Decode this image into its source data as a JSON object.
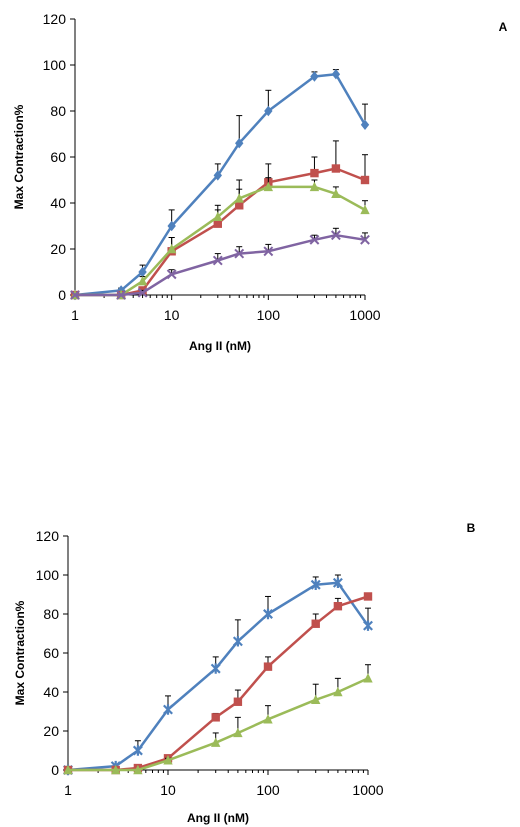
{
  "colors": {
    "blue": "#4F81BD",
    "red": "#C0504D",
    "green": "#9BBB59",
    "purple": "#8064A2",
    "axis": "#000000",
    "errorbar": "#000000"
  },
  "chart_data": [
    {
      "panel_label": "A",
      "type": "line",
      "xlabel": "Ang II (nM)",
      "ylabel": "Max Contraction%",
      "xscale": "log",
      "xlim": [
        1,
        1000
      ],
      "ylim": [
        0,
        120
      ],
      "xticks": [
        "1",
        "10",
        "100",
        "1000"
      ],
      "yticks": [
        "0",
        "20",
        "40",
        "60",
        "80",
        "100",
        "120"
      ],
      "grid": false,
      "legend": "none",
      "series": [
        {
          "color": "blue",
          "marker": "diamond",
          "x": [
            1,
            3,
            5,
            10,
            30,
            50,
            100,
            300,
            500,
            1000
          ],
          "y": [
            0,
            2,
            10,
            30,
            52,
            66,
            80,
            95,
            96,
            74
          ],
          "err": [
            0,
            1,
            3,
            7,
            5,
            12,
            9,
            2,
            2,
            9
          ]
        },
        {
          "color": "red",
          "marker": "square",
          "x": [
            1,
            3,
            5,
            10,
            30,
            50,
            100,
            300,
            500,
            1000
          ],
          "y": [
            0,
            0,
            2,
            19,
            31,
            39,
            49,
            53,
            55,
            50
          ],
          "err": [
            0,
            0,
            1,
            6,
            6,
            7,
            8,
            7,
            12,
            11
          ]
        },
        {
          "color": "green",
          "marker": "triangle",
          "x": [
            1,
            3,
            5,
            10,
            30,
            50,
            100,
            300,
            500,
            1000
          ],
          "y": [
            0,
            0,
            6,
            20,
            34,
            42,
            47,
            47,
            44,
            37
          ],
          "err": [
            0,
            0,
            2,
            5,
            5,
            8,
            4,
            3,
            3,
            4
          ]
        },
        {
          "color": "purple",
          "marker": "x",
          "x": [
            1,
            3,
            5,
            10,
            30,
            50,
            100,
            300,
            500,
            1000
          ],
          "y": [
            0,
            0,
            1,
            9,
            15,
            18,
            19,
            24,
            26,
            24
          ],
          "err": [
            0,
            0,
            1,
            2,
            3,
            3,
            3,
            2,
            3,
            3
          ]
        }
      ]
    },
    {
      "panel_label": "B",
      "type": "line",
      "xlabel": "Ang II (nM)",
      "ylabel": "Max Contraction%",
      "xscale": "log",
      "xlim": [
        1,
        1000
      ],
      "ylim": [
        0,
        120
      ],
      "xticks": [
        "1",
        "10",
        "100",
        "1000"
      ],
      "yticks": [
        "0",
        "20",
        "40",
        "60",
        "80",
        "100",
        "120"
      ],
      "grid": false,
      "legend": "none",
      "series": [
        {
          "color": "blue",
          "marker": "star",
          "x": [
            1,
            3,
            5,
            10,
            30,
            50,
            100,
            300,
            500,
            1000
          ],
          "y": [
            0,
            2,
            10,
            31,
            52,
            66,
            80,
            95,
            96,
            74
          ],
          "err": [
            0,
            1,
            5,
            7,
            6,
            11,
            9,
            4,
            4,
            9
          ]
        },
        {
          "color": "red",
          "marker": "square",
          "x": [
            1,
            3,
            5,
            10,
            30,
            50,
            100,
            300,
            500,
            1000
          ],
          "y": [
            0,
            0,
            1,
            6,
            27,
            35,
            53,
            75,
            84,
            89
          ],
          "err": [
            0,
            0,
            1,
            1,
            2,
            6,
            5,
            5,
            4,
            0
          ]
        },
        {
          "color": "green",
          "marker": "triangle",
          "x": [
            1,
            3,
            5,
            10,
            30,
            50,
            100,
            300,
            500,
            1000
          ],
          "y": [
            0,
            0,
            0,
            5,
            14,
            19,
            26,
            36,
            40,
            47
          ],
          "err": [
            0,
            0,
            0,
            1,
            5,
            8,
            7,
            8,
            7,
            7
          ]
        }
      ]
    }
  ]
}
